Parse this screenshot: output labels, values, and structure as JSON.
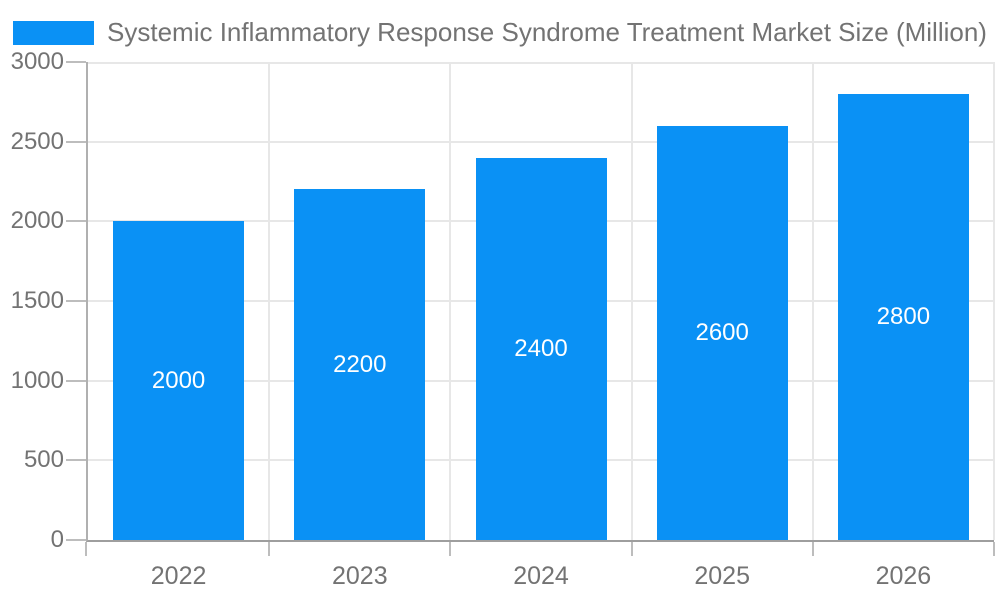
{
  "chart_data": {
    "type": "bar",
    "legend": {
      "position": "top",
      "label": "Systemic Inflammatory Response Syndrome Treatment Market Size (Million)"
    },
    "categories": [
      "2022",
      "2023",
      "2024",
      "2025",
      "2026"
    ],
    "series": [
      {
        "name": "Systemic Inflammatory Response Syndrome Treatment Market Size (Million)",
        "values": [
          2000,
          2200,
          2400,
          2600,
          2800
        ]
      }
    ],
    "bar_value_labels": [
      "2000",
      "2200",
      "2400",
      "2600",
      "2800"
    ],
    "xlabel": "",
    "ylabel": "",
    "ylim": [
      0,
      3000
    ],
    "yticks": [
      0,
      500,
      1000,
      1500,
      2000,
      2500,
      3000
    ],
    "grid": true,
    "gridlines": "horizontal-and-vertical",
    "bar_value_label_position": "center-of-bar"
  },
  "colors": {
    "bar": "#0a91f5",
    "grid": "#e7e7e7",
    "axis_y": "#b0b0b0",
    "axis_x": "#9e9e9e",
    "tick": "#bdbdbd",
    "text": "#737373",
    "bar_label": "#ffffff",
    "background": "#ffffff"
  }
}
